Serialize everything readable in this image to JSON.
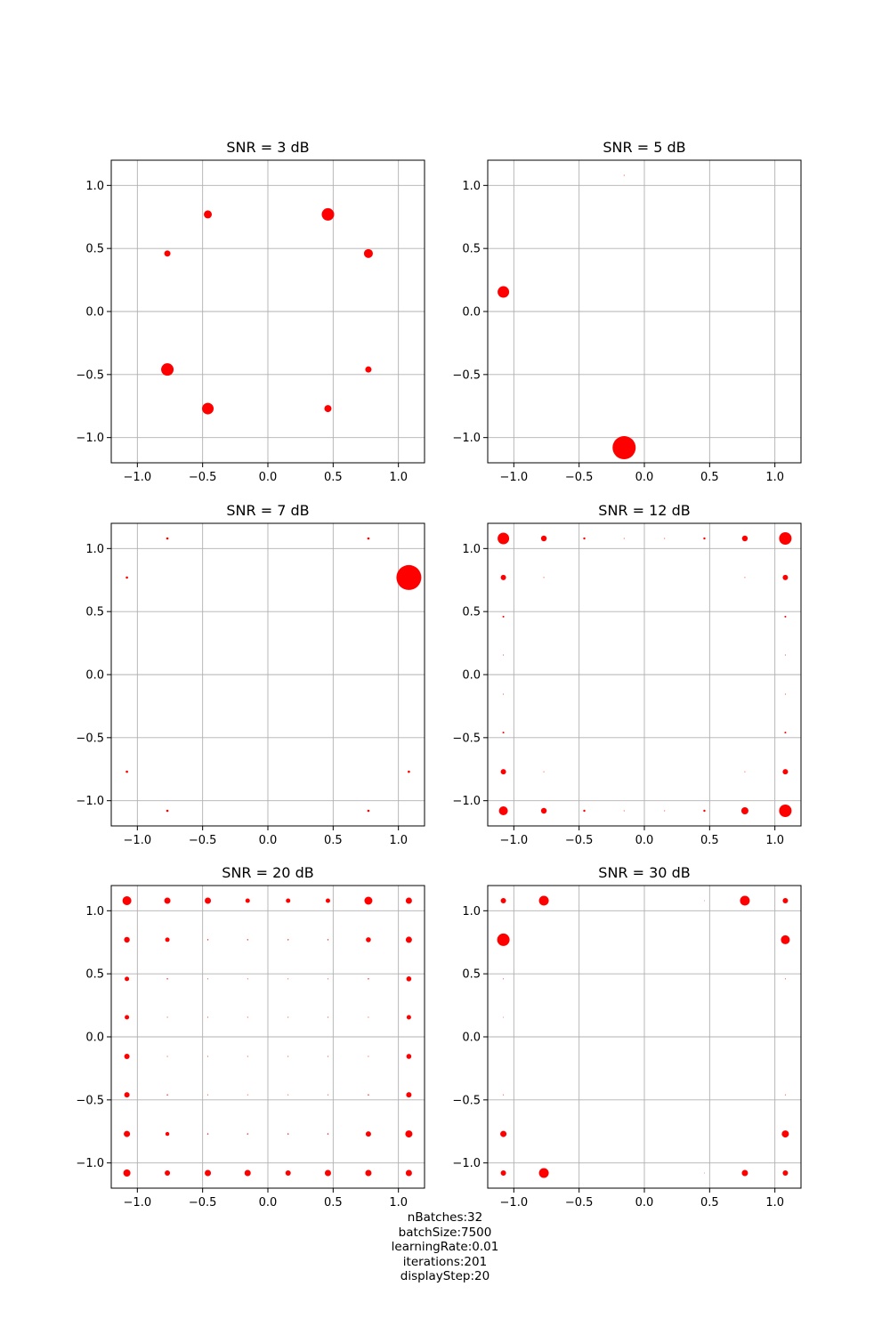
{
  "chart_data": [
    {
      "type": "scatter",
      "title": "SNR = 3 dB",
      "xlim": [
        -1.2,
        1.2
      ],
      "ylim": [
        -1.2,
        1.2
      ],
      "xticks": [
        "−1.0",
        "−0.5",
        "0.0",
        "0.5",
        "1.0"
      ],
      "yticks": [
        "−1.0",
        "−0.5",
        "0.0",
        "0.5",
        "1.0"
      ],
      "grid": true,
      "marker_color": "#ff0000",
      "points": [
        {
          "x": -0.46,
          "y": 0.77,
          "s": 4.5
        },
        {
          "x": 0.46,
          "y": 0.77,
          "s": 7
        },
        {
          "x": -0.77,
          "y": 0.46,
          "s": 3.5
        },
        {
          "x": 0.77,
          "y": 0.46,
          "s": 5
        },
        {
          "x": -0.77,
          "y": -0.46,
          "s": 7
        },
        {
          "x": 0.77,
          "y": -0.46,
          "s": 3.5
        },
        {
          "x": -0.46,
          "y": -0.77,
          "s": 6.5
        },
        {
          "x": 0.46,
          "y": -0.77,
          "s": 4
        }
      ]
    },
    {
      "type": "scatter",
      "title": "SNR = 5 dB",
      "xlim": [
        -1.2,
        1.2
      ],
      "ylim": [
        -1.2,
        1.2
      ],
      "xticks": [
        "−1.0",
        "−0.5",
        "0.0",
        "0.5",
        "1.0"
      ],
      "yticks": [
        "−1.0",
        "−0.5",
        "0.0",
        "0.5",
        "1.0"
      ],
      "grid": true,
      "marker_color": "#ff0000",
      "points": [
        {
          "x": -1.08,
          "y": 0.155,
          "s": 6.5
        },
        {
          "x": -0.155,
          "y": -1.08,
          "s": 13
        },
        {
          "x": -0.155,
          "y": 1.08,
          "s": 0.5
        }
      ]
    },
    {
      "type": "scatter",
      "title": "SNR = 7 dB",
      "xlim": [
        -1.2,
        1.2
      ],
      "ylim": [
        -1.2,
        1.2
      ],
      "xticks": [
        "−1.0",
        "−0.5",
        "0.0",
        "0.5",
        "1.0"
      ],
      "yticks": [
        "−1.0",
        "−0.5",
        "0.0",
        "0.5",
        "1.0"
      ],
      "grid": true,
      "marker_color": "#ff0000",
      "points": [
        {
          "x": 1.08,
          "y": 0.77,
          "s": 14
        },
        {
          "x": -0.77,
          "y": 1.08,
          "s": 1.3
        },
        {
          "x": 0.77,
          "y": 1.08,
          "s": 1.3
        },
        {
          "x": -1.08,
          "y": 0.77,
          "s": 1.3
        },
        {
          "x": -1.08,
          "y": -0.77,
          "s": 1.3
        },
        {
          "x": 1.08,
          "y": -0.77,
          "s": 1.3
        },
        {
          "x": -0.77,
          "y": -1.08,
          "s": 1.3
        },
        {
          "x": 0.77,
          "y": -1.08,
          "s": 1.3
        }
      ]
    },
    {
      "type": "scatter",
      "title": "SNR = 12 dB",
      "xlim": [
        -1.2,
        1.2
      ],
      "ylim": [
        -1.2,
        1.2
      ],
      "xticks": [
        "−1.0",
        "−0.5",
        "0.0",
        "0.5",
        "1.0"
      ],
      "yticks": [
        "−1.0",
        "−0.5",
        "0.0",
        "0.5",
        "1.0"
      ],
      "grid": true,
      "marker_color": "#ff0000",
      "points": [
        {
          "x": -1.08,
          "y": 1.08,
          "s": 6.5
        },
        {
          "x": -0.77,
          "y": 1.08,
          "s": 3.2
        },
        {
          "x": -0.46,
          "y": 1.08,
          "s": 1.2
        },
        {
          "x": 0.46,
          "y": 1.08,
          "s": 1.2
        },
        {
          "x": 0.77,
          "y": 1.08,
          "s": 3.2
        },
        {
          "x": 1.08,
          "y": 1.08,
          "s": 7
        },
        {
          "x": -1.08,
          "y": 0.77,
          "s": 3
        },
        {
          "x": 1.08,
          "y": 0.77,
          "s": 3
        },
        {
          "x": -1.08,
          "y": 0.46,
          "s": 1
        },
        {
          "x": 1.08,
          "y": 0.46,
          "s": 1
        },
        {
          "x": -1.08,
          "y": -0.46,
          "s": 1
        },
        {
          "x": 1.08,
          "y": -0.46,
          "s": 1
        },
        {
          "x": -1.08,
          "y": -0.77,
          "s": 3
        },
        {
          "x": 1.08,
          "y": -0.77,
          "s": 3
        },
        {
          "x": -1.08,
          "y": -1.08,
          "s": 5
        },
        {
          "x": -0.77,
          "y": -1.08,
          "s": 3.2
        },
        {
          "x": -0.46,
          "y": -1.08,
          "s": 1.2
        },
        {
          "x": 0.46,
          "y": -1.08,
          "s": 1.2
        },
        {
          "x": 0.77,
          "y": -1.08,
          "s": 4
        },
        {
          "x": 1.08,
          "y": -1.08,
          "s": 7
        },
        {
          "x": -0.155,
          "y": 1.08,
          "s": 0.5
        },
        {
          "x": 0.155,
          "y": 1.08,
          "s": 0.5
        },
        {
          "x": -0.155,
          "y": -1.08,
          "s": 0.5
        },
        {
          "x": 0.155,
          "y": -1.08,
          "s": 0.5
        },
        {
          "x": -0.77,
          "y": 0.77,
          "s": 0.5
        },
        {
          "x": 0.77,
          "y": 0.77,
          "s": 0.5
        },
        {
          "x": -0.77,
          "y": -0.77,
          "s": 0.5
        },
        {
          "x": 0.77,
          "y": -0.77,
          "s": 0.5
        },
        {
          "x": -1.08,
          "y": 0.155,
          "s": 0.5
        },
        {
          "x": -1.08,
          "y": -0.155,
          "s": 0.5
        },
        {
          "x": 1.08,
          "y": 0.155,
          "s": 0.5
        },
        {
          "x": 1.08,
          "y": -0.155,
          "s": 0.5
        }
      ]
    },
    {
      "type": "scatter",
      "title": "SNR = 20 dB",
      "xlim": [
        -1.2,
        1.2
      ],
      "ylim": [
        -1.2,
        1.2
      ],
      "xticks": [
        "−1.0",
        "−0.5",
        "0.0",
        "0.5",
        "1.0"
      ],
      "yticks": [
        "−1.0",
        "−0.5",
        "0.0",
        "0.5",
        "1.0"
      ],
      "grid": true,
      "marker_color": "#ff0000",
      "points": [
        {
          "x": -1.08,
          "y": 1.08,
          "s": 5
        },
        {
          "x": -0.77,
          "y": 1.08,
          "s": 3.5
        },
        {
          "x": -0.46,
          "y": 1.08,
          "s": 3.5
        },
        {
          "x": -0.155,
          "y": 1.08,
          "s": 2.5
        },
        {
          "x": 0.155,
          "y": 1.08,
          "s": 2.5
        },
        {
          "x": 0.46,
          "y": 1.08,
          "s": 2.5
        },
        {
          "x": 0.77,
          "y": 1.08,
          "s": 4.5
        },
        {
          "x": 1.08,
          "y": 1.08,
          "s": 3.5
        },
        {
          "x": -1.08,
          "y": 0.77,
          "s": 3.2
        },
        {
          "x": -0.77,
          "y": 0.77,
          "s": 2.5
        },
        {
          "x": -0.46,
          "y": 0.77,
          "s": 0.7
        },
        {
          "x": -0.155,
          "y": 0.77,
          "s": 0.7
        },
        {
          "x": 0.155,
          "y": 0.77,
          "s": 0.7
        },
        {
          "x": 0.46,
          "y": 0.77,
          "s": 0.7
        },
        {
          "x": 0.77,
          "y": 0.77,
          "s": 2.8
        },
        {
          "x": 1.08,
          "y": 0.77,
          "s": 3.5
        },
        {
          "x": -1.08,
          "y": 0.46,
          "s": 2.5
        },
        {
          "x": -0.77,
          "y": 0.46,
          "s": 0.7
        },
        {
          "x": -0.46,
          "y": 0.46,
          "s": 0.5
        },
        {
          "x": -0.155,
          "y": 0.46,
          "s": 0.5
        },
        {
          "x": 0.155,
          "y": 0.46,
          "s": 0.5
        },
        {
          "x": 0.46,
          "y": 0.46,
          "s": 0.5
        },
        {
          "x": 0.77,
          "y": 0.46,
          "s": 0.7
        },
        {
          "x": 1.08,
          "y": 0.46,
          "s": 2.8
        },
        {
          "x": -1.08,
          "y": 0.155,
          "s": 2.5
        },
        {
          "x": -0.77,
          "y": 0.155,
          "s": 0.5
        },
        {
          "x": -0.46,
          "y": 0.155,
          "s": 0.5
        },
        {
          "x": -0.155,
          "y": 0.155,
          "s": 0.5
        },
        {
          "x": 0.155,
          "y": 0.155,
          "s": 0.5
        },
        {
          "x": 0.46,
          "y": 0.155,
          "s": 0.5
        },
        {
          "x": 0.77,
          "y": 0.155,
          "s": 0.5
        },
        {
          "x": 1.08,
          "y": 0.155,
          "s": 2.5
        },
        {
          "x": -1.08,
          "y": -0.155,
          "s": 3
        },
        {
          "x": -0.77,
          "y": -0.155,
          "s": 0.5
        },
        {
          "x": -0.46,
          "y": -0.155,
          "s": 0.5
        },
        {
          "x": -0.155,
          "y": -0.155,
          "s": 0.5
        },
        {
          "x": 0.155,
          "y": -0.155,
          "s": 0.5
        },
        {
          "x": 0.46,
          "y": -0.155,
          "s": 0.5
        },
        {
          "x": 0.77,
          "y": -0.155,
          "s": 0.5
        },
        {
          "x": 1.08,
          "y": -0.155,
          "s": 2.8
        },
        {
          "x": -1.08,
          "y": -0.46,
          "s": 3
        },
        {
          "x": -0.77,
          "y": -0.46,
          "s": 0.7
        },
        {
          "x": -0.46,
          "y": -0.46,
          "s": 0.5
        },
        {
          "x": -0.155,
          "y": -0.46,
          "s": 0.5
        },
        {
          "x": 0.155,
          "y": -0.46,
          "s": 0.5
        },
        {
          "x": 0.46,
          "y": -0.46,
          "s": 0.5
        },
        {
          "x": 0.77,
          "y": -0.46,
          "s": 0.7
        },
        {
          "x": 1.08,
          "y": -0.46,
          "s": 3
        },
        {
          "x": -1.08,
          "y": -0.77,
          "s": 3.5
        },
        {
          "x": -0.77,
          "y": -0.77,
          "s": 2.2
        },
        {
          "x": -0.46,
          "y": -0.77,
          "s": 0.7
        },
        {
          "x": -0.155,
          "y": -0.77,
          "s": 0.7
        },
        {
          "x": 0.155,
          "y": -0.77,
          "s": 0.7
        },
        {
          "x": 0.46,
          "y": -0.77,
          "s": 0.7
        },
        {
          "x": 0.77,
          "y": -0.77,
          "s": 3
        },
        {
          "x": 1.08,
          "y": -0.77,
          "s": 4
        },
        {
          "x": -1.08,
          "y": -1.08,
          "s": 4
        },
        {
          "x": -0.77,
          "y": -1.08,
          "s": 3
        },
        {
          "x": -0.46,
          "y": -1.08,
          "s": 3.5
        },
        {
          "x": -0.155,
          "y": -1.08,
          "s": 3.5
        },
        {
          "x": 0.155,
          "y": -1.08,
          "s": 3
        },
        {
          "x": 0.46,
          "y": -1.08,
          "s": 3.5
        },
        {
          "x": 0.77,
          "y": -1.08,
          "s": 3.5
        },
        {
          "x": 1.08,
          "y": -1.08,
          "s": 3.5
        }
      ]
    },
    {
      "type": "scatter",
      "title": "SNR = 30 dB",
      "xlim": [
        -1.2,
        1.2
      ],
      "ylim": [
        -1.2,
        1.2
      ],
      "xticks": [
        "−1.0",
        "−0.5",
        "0.0",
        "0.5",
        "1.0"
      ],
      "yticks": [
        "−1.0",
        "−0.5",
        "0.0",
        "0.5",
        "1.0"
      ],
      "grid": true,
      "marker_color": "#ff0000",
      "points": [
        {
          "x": -1.08,
          "y": 1.08,
          "s": 3
        },
        {
          "x": -0.77,
          "y": 1.08,
          "s": 5.5
        },
        {
          "x": 0.77,
          "y": 1.08,
          "s": 5.5
        },
        {
          "x": 1.08,
          "y": 1.08,
          "s": 3
        },
        {
          "x": -1.08,
          "y": 0.77,
          "s": 7
        },
        {
          "x": 1.08,
          "y": 0.77,
          "s": 5
        },
        {
          "x": -1.08,
          "y": -0.77,
          "s": 3.5
        },
        {
          "x": 1.08,
          "y": -0.77,
          "s": 4
        },
        {
          "x": -1.08,
          "y": -1.08,
          "s": 3
        },
        {
          "x": -0.77,
          "y": -1.08,
          "s": 5.5
        },
        {
          "x": 0.77,
          "y": -1.08,
          "s": 3.5
        },
        {
          "x": 1.08,
          "y": -1.08,
          "s": 3
        },
        {
          "x": -1.08,
          "y": 0.46,
          "s": 0.5
        },
        {
          "x": 1.08,
          "y": 0.46,
          "s": 0.5
        },
        {
          "x": -1.08,
          "y": -0.46,
          "s": 0.5
        },
        {
          "x": 1.08,
          "y": -0.46,
          "s": 0.5
        },
        {
          "x": -1.08,
          "y": 0.155,
          "s": 0.4
        },
        {
          "x": 0.46,
          "y": -1.08,
          "s": 0.4
        },
        {
          "x": 0.46,
          "y": 1.08,
          "s": 0.4
        }
      ]
    }
  ],
  "caption": [
    "nBatches:32",
    "batchSize:7500",
    "learningRate:0.01",
    "iterations:201",
    "displayStep:20"
  ],
  "colors": {
    "marker": "#ff0000",
    "grid": "#b0b0b0",
    "axes": "#000000",
    "background": "#ffffff"
  }
}
